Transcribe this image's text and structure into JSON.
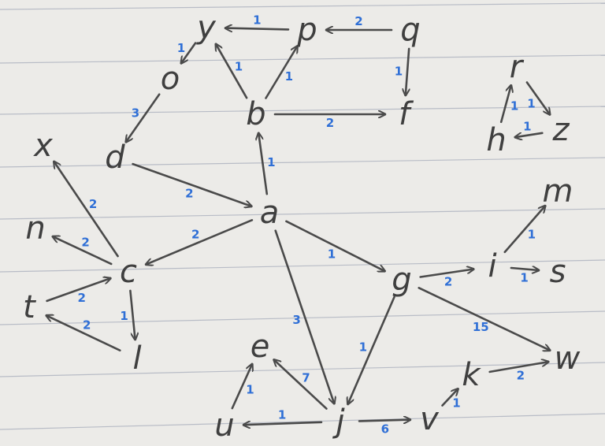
{
  "diagram": {
    "type": "directed-weighted-graph",
    "medium": "handwritten on lined paper",
    "nodes": [
      {
        "id": "y",
        "label": "y"
      },
      {
        "id": "p",
        "label": "p"
      },
      {
        "id": "q",
        "label": "q"
      },
      {
        "id": "o",
        "label": "o"
      },
      {
        "id": "b",
        "label": "b"
      },
      {
        "id": "f",
        "label": "f"
      },
      {
        "id": "r",
        "label": "r"
      },
      {
        "id": "h",
        "label": "h"
      },
      {
        "id": "z",
        "label": "z"
      },
      {
        "id": "x",
        "label": "x"
      },
      {
        "id": "d",
        "label": "d"
      },
      {
        "id": "a",
        "label": "a"
      },
      {
        "id": "m",
        "label": "m"
      },
      {
        "id": "n",
        "label": "n"
      },
      {
        "id": "c",
        "label": "c"
      },
      {
        "id": "i",
        "label": "i"
      },
      {
        "id": "s",
        "label": "s"
      },
      {
        "id": "t",
        "label": "t"
      },
      {
        "id": "g",
        "label": "g"
      },
      {
        "id": "l",
        "label": "l"
      },
      {
        "id": "e",
        "label": "e"
      },
      {
        "id": "w",
        "label": "w"
      },
      {
        "id": "k",
        "label": "k"
      },
      {
        "id": "u",
        "label": "u"
      },
      {
        "id": "j",
        "label": "j"
      },
      {
        "id": "v",
        "label": "v"
      }
    ],
    "edges": [
      {
        "from": "p",
        "to": "y",
        "weight": "1"
      },
      {
        "from": "q",
        "to": "p",
        "weight": "2"
      },
      {
        "from": "y",
        "to": "o",
        "weight": "1"
      },
      {
        "from": "b",
        "to": "y",
        "weight": "1"
      },
      {
        "from": "b",
        "to": "p",
        "weight": "1"
      },
      {
        "from": "q",
        "to": "f",
        "weight": "1"
      },
      {
        "from": "o",
        "to": "d",
        "weight": "3"
      },
      {
        "from": "b",
        "to": "f",
        "weight": "2"
      },
      {
        "from": "h",
        "to": "r",
        "weight": "1"
      },
      {
        "from": "r",
        "to": "z",
        "weight": "1"
      },
      {
        "from": "z",
        "to": "h",
        "weight": "1"
      },
      {
        "from": "a",
        "to": "b",
        "weight": "1"
      },
      {
        "from": "d",
        "to": "a",
        "weight": "2"
      },
      {
        "from": "c",
        "to": "x",
        "weight": "2"
      },
      {
        "from": "c",
        "to": "n",
        "weight": "2"
      },
      {
        "from": "a",
        "to": "c",
        "weight": "2"
      },
      {
        "from": "a",
        "to": "g",
        "weight": "1"
      },
      {
        "from": "a",
        "to": "j",
        "weight": "3"
      },
      {
        "from": "i",
        "to": "m",
        "weight": "1"
      },
      {
        "from": "g",
        "to": "i",
        "weight": "2"
      },
      {
        "from": "i",
        "to": "s",
        "weight": "1"
      },
      {
        "from": "t",
        "to": "c",
        "weight": "2"
      },
      {
        "from": "c",
        "to": "l",
        "weight": "1"
      },
      {
        "from": "l",
        "to": "t",
        "weight": "2"
      },
      {
        "from": "g",
        "to": "w",
        "weight": "15"
      },
      {
        "from": "g",
        "to": "j",
        "weight": "1"
      },
      {
        "from": "k",
        "to": "w",
        "weight": "2"
      },
      {
        "from": "u",
        "to": "e",
        "weight": "1"
      },
      {
        "from": "j",
        "to": "e",
        "weight": "7"
      },
      {
        "from": "v",
        "to": "k",
        "weight": "1"
      },
      {
        "from": "j",
        "to": "u",
        "weight": "1"
      },
      {
        "from": "j",
        "to": "v",
        "weight": "6"
      }
    ]
  }
}
